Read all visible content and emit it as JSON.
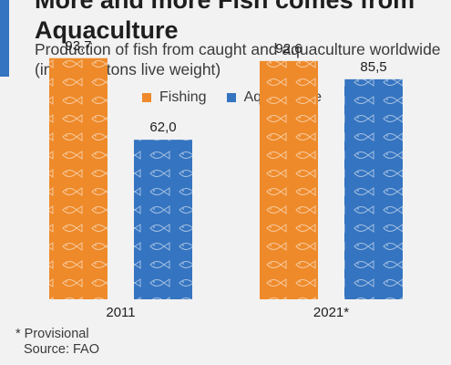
{
  "title": "More and more Fish comes from Aquaculture",
  "subtitle": "Production of fish from caught and aquaculture worldwide (in million tons live weight)",
  "legend": [
    {
      "label": "Fishing",
      "color": "#ee8a2a"
    },
    {
      "label": "Aquaculture",
      "color": "#3574c0"
    }
  ],
  "colors": {
    "accent": "#3574c0",
    "background": "#f2f2f2",
    "fish_pattern": "#ffffff"
  },
  "chart_data": {
    "type": "bar",
    "categories": [
      "2011",
      "2021*"
    ],
    "series": [
      {
        "name": "Fishing",
        "values": [
          93.7,
          92.6
        ],
        "labels": [
          "93,7",
          "92,6"
        ],
        "color": "#ee8a2a"
      },
      {
        "name": "Aquaculture",
        "values": [
          62.0,
          85.5
        ],
        "labels": [
          "62,0",
          "85,5"
        ],
        "color": "#3574c0"
      }
    ],
    "ylim": [
      0,
      100
    ],
    "grid": false,
    "legend_position": "top",
    "xlabel": "",
    "ylabel": ""
  },
  "footnote": {
    "provisional": "* Provisional",
    "source": "Source: FAO"
  }
}
